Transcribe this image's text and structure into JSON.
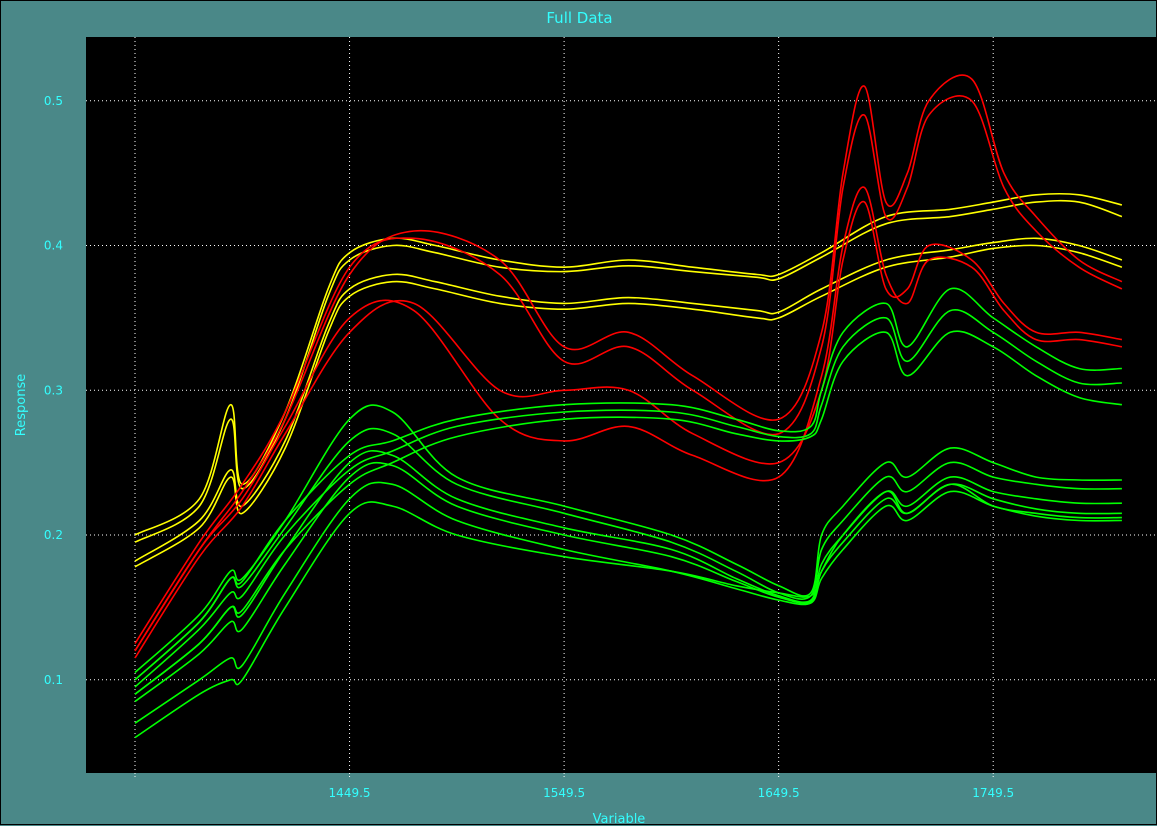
{
  "window": {
    "title": "Full Data"
  },
  "colors": {
    "frame_bg": "#4a8888",
    "plot_bg": "#000000",
    "text": "#33ffff",
    "grid": "#ffffff",
    "series": {
      "yellow": "#ffff00",
      "red": "#ff0000",
      "green": "#00ff00"
    }
  },
  "chart_data": {
    "type": "line",
    "title": "Full Data",
    "xlabel": "Variable",
    "ylabel": "Response",
    "xlim": [
      1349.5,
      1809.5
    ],
    "ylim": [
      0.035,
      0.545
    ],
    "grid": true,
    "x_ticks": [
      1349.5,
      1449.5,
      1549.5,
      1649.5,
      1749.5
    ],
    "x_tick_labels": [
      "",
      "1449.5",
      "1549.5",
      "1649.5",
      "1749.5"
    ],
    "y_ticks": [
      0.1,
      0.2,
      0.3,
      0.4,
      0.5
    ],
    "y_tick_labels": [
      "0.1",
      "0.2",
      "0.3",
      "0.4",
      "0.5"
    ],
    "series": [
      {
        "color": "yellow",
        "x": [
          1349.5,
          1379.5,
          1394,
          1399.5,
          1419.5,
          1439.5,
          1449.5,
          1469.5,
          1489.5,
          1519.5,
          1549.5,
          1579.5,
          1609.5,
          1639.5,
          1649.5,
          1669.5,
          1699.5,
          1729.5,
          1749.5,
          1769.5,
          1789.5,
          1809.5
        ],
        "values": [
          0.2,
          0.225,
          0.29,
          0.235,
          0.285,
          0.37,
          0.395,
          0.405,
          0.4,
          0.39,
          0.385,
          0.39,
          0.385,
          0.38,
          0.38,
          0.395,
          0.42,
          0.425,
          0.43,
          0.435,
          0.435,
          0.428
        ]
      },
      {
        "color": "yellow",
        "x": [
          1349.5,
          1379.5,
          1394,
          1399.5,
          1419.5,
          1439.5,
          1449.5,
          1469.5,
          1489.5,
          1519.5,
          1549.5,
          1579.5,
          1609.5,
          1639.5,
          1649.5,
          1669.5,
          1699.5,
          1729.5,
          1749.5,
          1769.5,
          1789.5,
          1809.5
        ],
        "values": [
          0.195,
          0.22,
          0.28,
          0.232,
          0.28,
          0.365,
          0.39,
          0.4,
          0.395,
          0.385,
          0.382,
          0.386,
          0.382,
          0.378,
          0.377,
          0.392,
          0.415,
          0.42,
          0.425,
          0.43,
          0.43,
          0.42
        ]
      },
      {
        "color": "yellow",
        "x": [
          1349.5,
          1379.5,
          1394,
          1399.5,
          1419.5,
          1439.5,
          1449.5,
          1469.5,
          1489.5,
          1519.5,
          1549.5,
          1579.5,
          1609.5,
          1639.5,
          1649.5,
          1669.5,
          1699.5,
          1729.5,
          1749.5,
          1769.5,
          1789.5,
          1809.5
        ],
        "values": [
          0.178,
          0.205,
          0.24,
          0.215,
          0.26,
          0.34,
          0.365,
          0.375,
          0.37,
          0.36,
          0.356,
          0.36,
          0.356,
          0.35,
          0.35,
          0.365,
          0.385,
          0.392,
          0.398,
          0.4,
          0.395,
          0.385
        ]
      },
      {
        "color": "yellow",
        "x": [
          1349.5,
          1379.5,
          1394,
          1399.5,
          1419.5,
          1439.5,
          1449.5,
          1469.5,
          1489.5,
          1519.5,
          1549.5,
          1579.5,
          1609.5,
          1639.5,
          1649.5,
          1669.5,
          1699.5,
          1729.5,
          1749.5,
          1769.5,
          1789.5,
          1809.5
        ],
        "values": [
          0.182,
          0.21,
          0.245,
          0.22,
          0.265,
          0.345,
          0.37,
          0.38,
          0.375,
          0.365,
          0.36,
          0.364,
          0.36,
          0.355,
          0.354,
          0.37,
          0.39,
          0.397,
          0.402,
          0.405,
          0.4,
          0.39
        ]
      },
      {
        "color": "red",
        "x": [
          1349.5,
          1379.5,
          1399.5,
          1419.5,
          1449.5,
          1479.5,
          1519.5,
          1549.5,
          1579.5,
          1609.5,
          1649.5,
          1669.5,
          1679.5,
          1689.5,
          1699.5,
          1709.5,
          1719.5,
          1739.5,
          1754.5,
          1769.5,
          1789.5,
          1809.5
        ],
        "values": [
          0.12,
          0.19,
          0.23,
          0.28,
          0.38,
          0.41,
          0.39,
          0.33,
          0.34,
          0.31,
          0.28,
          0.34,
          0.45,
          0.51,
          0.43,
          0.45,
          0.5,
          0.515,
          0.45,
          0.42,
          0.39,
          0.375
        ]
      },
      {
        "color": "red",
        "x": [
          1349.5,
          1379.5,
          1399.5,
          1419.5,
          1449.5,
          1479.5,
          1519.5,
          1549.5,
          1579.5,
          1609.5,
          1649.5,
          1669.5,
          1679.5,
          1689.5,
          1699.5,
          1709.5,
          1719.5,
          1739.5,
          1754.5,
          1769.5,
          1789.5,
          1809.5
        ],
        "values": [
          0.125,
          0.195,
          0.235,
          0.285,
          0.385,
          0.405,
          0.38,
          0.32,
          0.33,
          0.3,
          0.27,
          0.33,
          0.44,
          0.49,
          0.42,
          0.44,
          0.49,
          0.5,
          0.44,
          0.41,
          0.385,
          0.37
        ]
      },
      {
        "color": "red",
        "x": [
          1349.5,
          1379.5,
          1399.5,
          1419.5,
          1449.5,
          1479.5,
          1519.5,
          1549.5,
          1579.5,
          1609.5,
          1649.5,
          1669.5,
          1679.5,
          1689.5,
          1699.5,
          1709.5,
          1719.5,
          1739.5,
          1754.5,
          1769.5,
          1789.5,
          1809.5
        ],
        "values": [
          0.115,
          0.185,
          0.22,
          0.27,
          0.34,
          0.36,
          0.3,
          0.3,
          0.3,
          0.27,
          0.25,
          0.3,
          0.39,
          0.43,
          0.37,
          0.37,
          0.4,
          0.39,
          0.36,
          0.34,
          0.34,
          0.335
        ]
      },
      {
        "color": "red",
        "x": [
          1349.5,
          1379.5,
          1399.5,
          1419.5,
          1449.5,
          1479.5,
          1519.5,
          1549.5,
          1579.5,
          1609.5,
          1649.5,
          1669.5,
          1679.5,
          1689.5,
          1699.5,
          1709.5,
          1719.5,
          1739.5,
          1754.5,
          1769.5,
          1789.5,
          1809.5
        ],
        "values": [
          0.12,
          0.19,
          0.225,
          0.275,
          0.35,
          0.355,
          0.28,
          0.265,
          0.275,
          0.255,
          0.24,
          0.31,
          0.4,
          0.44,
          0.38,
          0.36,
          0.39,
          0.385,
          0.355,
          0.335,
          0.335,
          0.33
        ]
      },
      {
        "color": "green",
        "x": [
          1349.5,
          1379.5,
          1394,
          1399.5,
          1419.5,
          1449.5,
          1469.5,
          1499.5,
          1549.5,
          1599.5,
          1629.5,
          1649.5,
          1664.5,
          1669.5,
          1679.5,
          1699.5,
          1709.5,
          1729.5,
          1749.5,
          1769.5,
          1789.5,
          1809.5
        ],
        "values": [
          0.105,
          0.145,
          0.175,
          0.17,
          0.21,
          0.28,
          0.285,
          0.24,
          0.22,
          0.2,
          0.18,
          0.165,
          0.16,
          0.2,
          0.22,
          0.25,
          0.24,
          0.26,
          0.25,
          0.24,
          0.238,
          0.238
        ]
      },
      {
        "color": "green",
        "x": [
          1349.5,
          1379.5,
          1394,
          1399.5,
          1419.5,
          1449.5,
          1469.5,
          1499.5,
          1549.5,
          1599.5,
          1629.5,
          1649.5,
          1664.5,
          1669.5,
          1679.5,
          1699.5,
          1709.5,
          1729.5,
          1749.5,
          1769.5,
          1789.5,
          1809.5
        ],
        "values": [
          0.1,
          0.14,
          0.17,
          0.165,
          0.205,
          0.265,
          0.27,
          0.235,
          0.215,
          0.195,
          0.175,
          0.16,
          0.158,
          0.19,
          0.21,
          0.24,
          0.23,
          0.25,
          0.24,
          0.235,
          0.232,
          0.232
        ]
      },
      {
        "color": "green",
        "x": [
          1349.5,
          1379.5,
          1394,
          1399.5,
          1419.5,
          1449.5,
          1469.5,
          1499.5,
          1549.5,
          1599.5,
          1629.5,
          1649.5,
          1664.5,
          1669.5,
          1679.5,
          1699.5,
          1709.5,
          1729.5,
          1749.5,
          1769.5,
          1789.5,
          1809.5
        ],
        "values": [
          0.09,
          0.125,
          0.15,
          0.145,
          0.19,
          0.25,
          0.255,
          0.225,
          0.205,
          0.19,
          0.17,
          0.158,
          0.155,
          0.18,
          0.2,
          0.23,
          0.22,
          0.24,
          0.23,
          0.225,
          0.222,
          0.222
        ]
      },
      {
        "color": "green",
        "x": [
          1349.5,
          1379.5,
          1394,
          1399.5,
          1419.5,
          1449.5,
          1469.5,
          1499.5,
          1549.5,
          1599.5,
          1629.5,
          1649.5,
          1664.5,
          1669.5,
          1679.5,
          1699.5,
          1709.5,
          1729.5,
          1749.5,
          1769.5,
          1789.5,
          1809.5
        ],
        "values": [
          0.085,
          0.118,
          0.14,
          0.135,
          0.18,
          0.24,
          0.248,
          0.22,
          0.2,
          0.185,
          0.168,
          0.157,
          0.154,
          0.175,
          0.195,
          0.225,
          0.215,
          0.235,
          0.225,
          0.218,
          0.215,
          0.215
        ]
      },
      {
        "color": "green",
        "x": [
          1349.5,
          1379.5,
          1394,
          1399.5,
          1419.5,
          1449.5,
          1469.5,
          1499.5,
          1549.5,
          1599.5,
          1629.5,
          1649.5,
          1664.5,
          1669.5,
          1679.5,
          1699.5,
          1709.5,
          1729.5,
          1749.5,
          1769.5,
          1789.5,
          1809.5
        ],
        "values": [
          0.07,
          0.1,
          0.115,
          0.11,
          0.16,
          0.225,
          0.235,
          0.21,
          0.19,
          0.175,
          0.163,
          0.155,
          0.153,
          0.17,
          0.19,
          0.22,
          0.21,
          0.23,
          0.22,
          0.213,
          0.21,
          0.21
        ]
      },
      {
        "color": "green",
        "x": [
          1349.5,
          1379.5,
          1394,
          1399.5,
          1419.5,
          1449.5,
          1469.5,
          1499.5,
          1549.5,
          1599.5,
          1629.5,
          1649.5,
          1664.5,
          1669.5,
          1679.5,
          1699.5,
          1709.5,
          1729.5,
          1749.5,
          1769.5,
          1789.5,
          1809.5
        ],
        "values": [
          0.06,
          0.09,
          0.1,
          0.1,
          0.15,
          0.215,
          0.22,
          0.2,
          0.185,
          0.175,
          0.165,
          0.16,
          0.158,
          0.175,
          0.2,
          0.23,
          0.215,
          0.235,
          0.22,
          0.215,
          0.212,
          0.212
        ]
      },
      {
        "color": "green",
        "x": [
          1349.5,
          1379.5,
          1394,
          1399.5,
          1419.5,
          1449.5,
          1469.5,
          1499.5,
          1549.5,
          1599.5,
          1629.5,
          1649.5,
          1664.5,
          1669.5,
          1679.5,
          1699.5,
          1709.5,
          1729.5,
          1749.5,
          1769.5,
          1789.5,
          1809.5
        ],
        "values": [
          0.1,
          0.14,
          0.17,
          0.168,
          0.21,
          0.255,
          0.265,
          0.28,
          0.29,
          0.29,
          0.28,
          0.272,
          0.275,
          0.3,
          0.34,
          0.36,
          0.33,
          0.37,
          0.35,
          0.33,
          0.315,
          0.315
        ]
      },
      {
        "color": "green",
        "x": [
          1349.5,
          1379.5,
          1394,
          1399.5,
          1419.5,
          1449.5,
          1469.5,
          1499.5,
          1549.5,
          1599.5,
          1629.5,
          1649.5,
          1664.5,
          1669.5,
          1679.5,
          1699.5,
          1709.5,
          1729.5,
          1749.5,
          1769.5,
          1789.5,
          1809.5
        ],
        "values": [
          0.095,
          0.135,
          0.16,
          0.158,
          0.2,
          0.245,
          0.258,
          0.275,
          0.285,
          0.285,
          0.275,
          0.268,
          0.27,
          0.29,
          0.33,
          0.35,
          0.32,
          0.355,
          0.34,
          0.32,
          0.305,
          0.305
        ]
      },
      {
        "color": "green",
        "x": [
          1349.5,
          1379.5,
          1394,
          1399.5,
          1419.5,
          1449.5,
          1469.5,
          1499.5,
          1549.5,
          1599.5,
          1629.5,
          1649.5,
          1664.5,
          1669.5,
          1679.5,
          1699.5,
          1709.5,
          1729.5,
          1749.5,
          1769.5,
          1789.5,
          1809.5
        ],
        "values": [
          0.09,
          0.125,
          0.15,
          0.148,
          0.19,
          0.235,
          0.25,
          0.268,
          0.28,
          0.28,
          0.27,
          0.265,
          0.268,
          0.28,
          0.32,
          0.34,
          0.31,
          0.34,
          0.33,
          0.31,
          0.295,
          0.29
        ]
      }
    ]
  }
}
